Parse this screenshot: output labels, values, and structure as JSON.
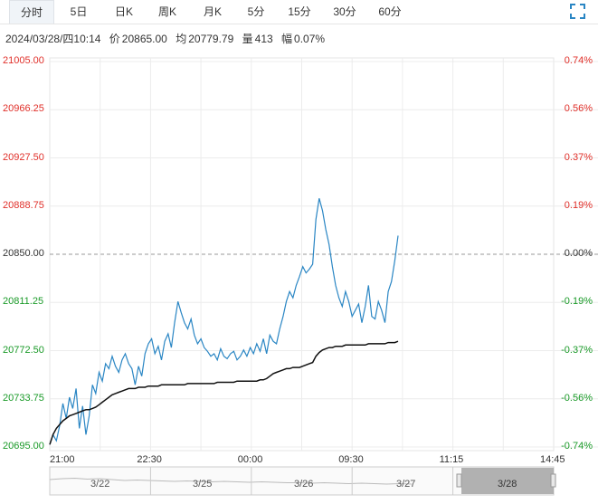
{
  "tabs": [
    {
      "label": "分时",
      "active": true
    },
    {
      "label": "5日",
      "active": false
    },
    {
      "label": "日K",
      "active": false
    },
    {
      "label": "周K",
      "active": false
    },
    {
      "label": "月K",
      "active": false
    },
    {
      "label": "5分",
      "active": false
    },
    {
      "label": "15分",
      "active": false
    },
    {
      "label": "30分",
      "active": false
    },
    {
      "label": "60分",
      "active": false
    }
  ],
  "fullscreen_icon": "fullscreen-icon",
  "info": {
    "datetime": "2024/03/28/四10:14",
    "price_label": "价",
    "price": "20865.00",
    "avg_label": "均",
    "avg": "20779.79",
    "volume_label": "量",
    "volume": "413",
    "amplitude_label": "幅",
    "amplitude": "0.07%"
  },
  "colors": {
    "up": "#e0302a",
    "down": "#1a9a28",
    "base": "#333333",
    "price_line": "#2a86c4",
    "avg_line": "#111111"
  },
  "chart_data": {
    "type": "line",
    "prev_close": 20850.0,
    "ylim": [
      20695.0,
      21005.0
    ],
    "y_ticks_left": [
      "21005.00",
      "20966.25",
      "20927.50",
      "20888.75",
      "20850.00",
      "20811.25",
      "20772.50",
      "20733.75",
      "20695.00"
    ],
    "y_ticks_right": [
      "0.74%",
      "0.56%",
      "0.37%",
      "0.19%",
      "0.00%",
      "-0.19%",
      "-0.37%",
      "-0.56%",
      "-0.74%"
    ],
    "x_ticks": [
      "21:00",
      "22:30",
      "00:00",
      "09:30",
      "11:15",
      "14:45"
    ],
    "x_tick_fractions": [
      0,
      0.2,
      0.4,
      0.6,
      0.8,
      1
    ],
    "series": [
      {
        "key": "price",
        "values": [
          20697,
          20705,
          20700,
          20712,
          20730,
          20718,
          20735,
          20726,
          20742,
          20710,
          20728,
          20705,
          20720,
          20745,
          20738,
          20755,
          20748,
          20762,
          20758,
          20768,
          20760,
          20755,
          20765,
          20770,
          20762,
          20758,
          20745,
          20760,
          20752,
          20770,
          20778,
          20782,
          20770,
          20776,
          20765,
          20780,
          20786,
          20775,
          20795,
          20812,
          20803,
          20795,
          20790,
          20798,
          20785,
          20778,
          20782,
          20775,
          20772,
          20768,
          20770,
          20765,
          20774,
          20768,
          20766,
          20770,
          20772,
          20765,
          20768,
          20773,
          20768,
          20775,
          20770,
          20778,
          20772,
          20782,
          20770,
          20785,
          20780,
          20778,
          20790,
          20800,
          20812,
          20820,
          20815,
          20825,
          20832,
          20840,
          20835,
          20838,
          20842,
          20878,
          20895,
          20885,
          20870,
          20858,
          20840,
          20825,
          20815,
          20808,
          20820,
          20812,
          20800,
          20805,
          20810,
          20795,
          20808,
          20825,
          20800,
          20798,
          20812,
          20805,
          20795,
          20820,
          20828,
          20845,
          20865
        ]
      },
      {
        "key": "avg",
        "values": [
          20697,
          20705,
          20710,
          20713,
          20716,
          20718,
          20720,
          20721,
          20722,
          20723,
          20724,
          20725,
          20725,
          20726,
          20727,
          20729,
          20731,
          20733,
          20735,
          20737,
          20738,
          20739,
          20740,
          20741,
          20742,
          20742,
          20742,
          20743,
          20743,
          20743,
          20744,
          20744,
          20744,
          20744,
          20745,
          20745,
          20745,
          20745,
          20745,
          20745,
          20745,
          20745,
          20746,
          20746,
          20746,
          20746,
          20746,
          20746,
          20746,
          20746,
          20746,
          20747,
          20747,
          20747,
          20747,
          20747,
          20747,
          20748,
          20748,
          20748,
          20748,
          20748,
          20748,
          20748,
          20749,
          20749,
          20750,
          20752,
          20754,
          20755,
          20756,
          20757,
          20758,
          20758,
          20759,
          20759,
          20759,
          20760,
          20761,
          20762,
          20763,
          20768,
          20771,
          20773,
          20774,
          20775,
          20775,
          20776,
          20776,
          20776,
          20777,
          20777,
          20777,
          20777,
          20777,
          20777,
          20777,
          20778,
          20778,
          20778,
          20778,
          20778,
          20778,
          20779,
          20779,
          20779,
          20780
        ]
      }
    ]
  },
  "navigator": {
    "labels": [
      "3/22",
      "3/25",
      "3/26",
      "3/27",
      "3/28"
    ],
    "handle_icons": [
      "grip-left-icon",
      "grip-right-icon"
    ]
  }
}
